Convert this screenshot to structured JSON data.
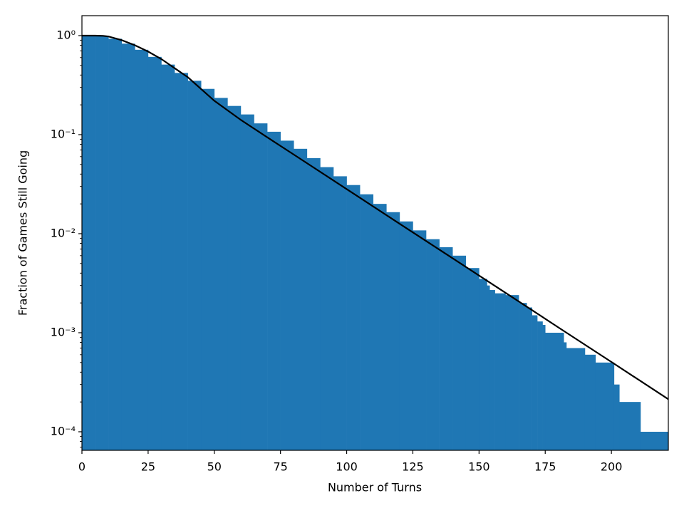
{
  "chart_data": {
    "type": "histogram",
    "x_label": "Number of Turns",
    "y_label": "Fraction of Games Still Going",
    "log_y": true,
    "color": "#1f77b4",
    "bins": [
      0,
      5,
      10,
      15,
      20,
      25,
      30,
      35,
      40,
      45,
      50,
      55,
      60,
      65,
      70,
      75,
      80,
      85,
      90,
      95,
      100,
      105,
      110,
      115,
      120,
      125,
      130,
      135,
      140,
      145,
      150,
      153,
      154,
      156,
      160,
      165,
      168,
      170,
      172,
      174,
      175,
      182,
      183,
      190,
      194,
      201,
      203,
      211,
      221.5
    ],
    "values": [
      1.0,
      0.99,
      0.93,
      0.83,
      0.72,
      0.61,
      0.51,
      0.42,
      0.35,
      0.29,
      0.235,
      0.195,
      0.16,
      0.13,
      0.107,
      0.087,
      0.072,
      0.058,
      0.047,
      0.038,
      0.031,
      0.025,
      0.02,
      0.0165,
      0.0133,
      0.0108,
      0.0088,
      0.0073,
      0.006,
      0.0045,
      0.0035,
      0.003,
      0.0027,
      0.0025,
      0.0024,
      0.002,
      0.0018,
      0.0015,
      0.0013,
      0.0012,
      0.001,
      0.0008,
      0.0007,
      0.0006,
      0.0005,
      0.0003,
      0.0002,
      0.0001
    ],
    "overlay": {
      "type": "line",
      "color": "#000000",
      "x": [
        0,
        5,
        8,
        10,
        15,
        20,
        25,
        30,
        40,
        50,
        60,
        70,
        80,
        100,
        120,
        140,
        160,
        180,
        200,
        221.5
      ],
      "values": [
        1.0,
        1.0,
        0.995,
        0.98,
        0.9,
        0.8,
        0.69,
        0.58,
        0.38,
        0.22,
        0.141,
        0.094,
        0.063,
        0.0282,
        0.0126,
        0.00565,
        0.00253,
        0.00113,
        0.000507,
        0.000213
      ]
    },
    "xlim": [
      0,
      221.5
    ],
    "ylim": [
      6.5e-05,
      1.59
    ],
    "xticks": [
      0,
      25,
      50,
      75,
      100,
      125,
      150,
      175,
      200
    ],
    "yticks": [
      {
        "value": 1,
        "label": "10⁰"
      },
      {
        "value": 0.1,
        "label": "10⁻¹"
      },
      {
        "value": 0.01,
        "label": "10⁻²"
      },
      {
        "value": 0.001,
        "label": "10⁻³"
      },
      {
        "value": 0.0001,
        "label": "10⁻⁴"
      }
    ],
    "yminorticks": [
      7e-05,
      8e-05,
      9e-05,
      0.0002,
      0.0003,
      0.0004,
      0.0005,
      0.0006,
      0.0007,
      0.0008,
      0.0009,
      0.002,
      0.003,
      0.004,
      0.005,
      0.006,
      0.007,
      0.008,
      0.009,
      0.02,
      0.03,
      0.04,
      0.05,
      0.06,
      0.07,
      0.08,
      0.09,
      0.2,
      0.3,
      0.4,
      0.5,
      0.6,
      0.7,
      0.8,
      0.9
    ]
  }
}
